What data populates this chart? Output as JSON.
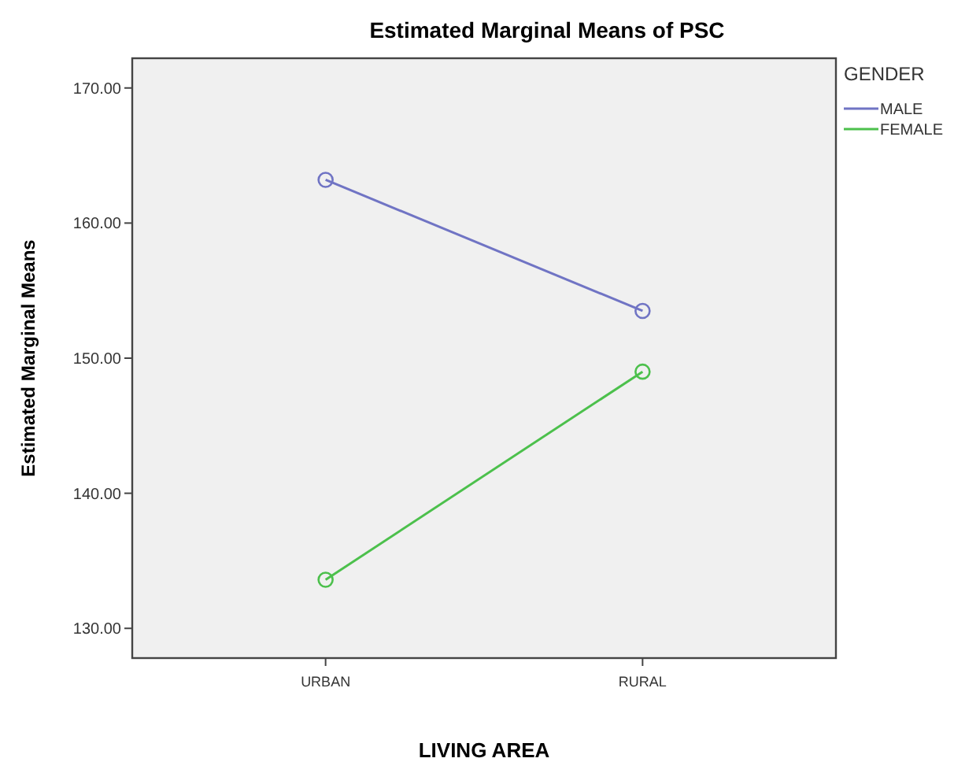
{
  "chart_data": {
    "type": "line",
    "title": "Estimated Marginal Means of PSC",
    "xlabel": "LIVING AREA",
    "ylabel": "Estimated Marginal Means",
    "legend_title": "GENDER",
    "categories": [
      "URBAN",
      "RURAL"
    ],
    "series": [
      {
        "name": "MALE",
        "color": "#7074c4",
        "values": [
          163.2,
          153.5
        ]
      },
      {
        "name": "FEMALE",
        "color": "#4cc04c",
        "values": [
          133.6,
          149.0
        ]
      }
    ],
    "ylim": [
      127.8,
      172.2
    ],
    "yticks": [
      {
        "value": 130,
        "label": "130.00"
      },
      {
        "value": 140,
        "label": "140.00"
      },
      {
        "value": 150,
        "label": "150.00"
      },
      {
        "value": 160,
        "label": "160.00"
      },
      {
        "value": 170,
        "label": "170.00"
      }
    ],
    "marker": "circle",
    "legend": "top right",
    "grid": false
  }
}
